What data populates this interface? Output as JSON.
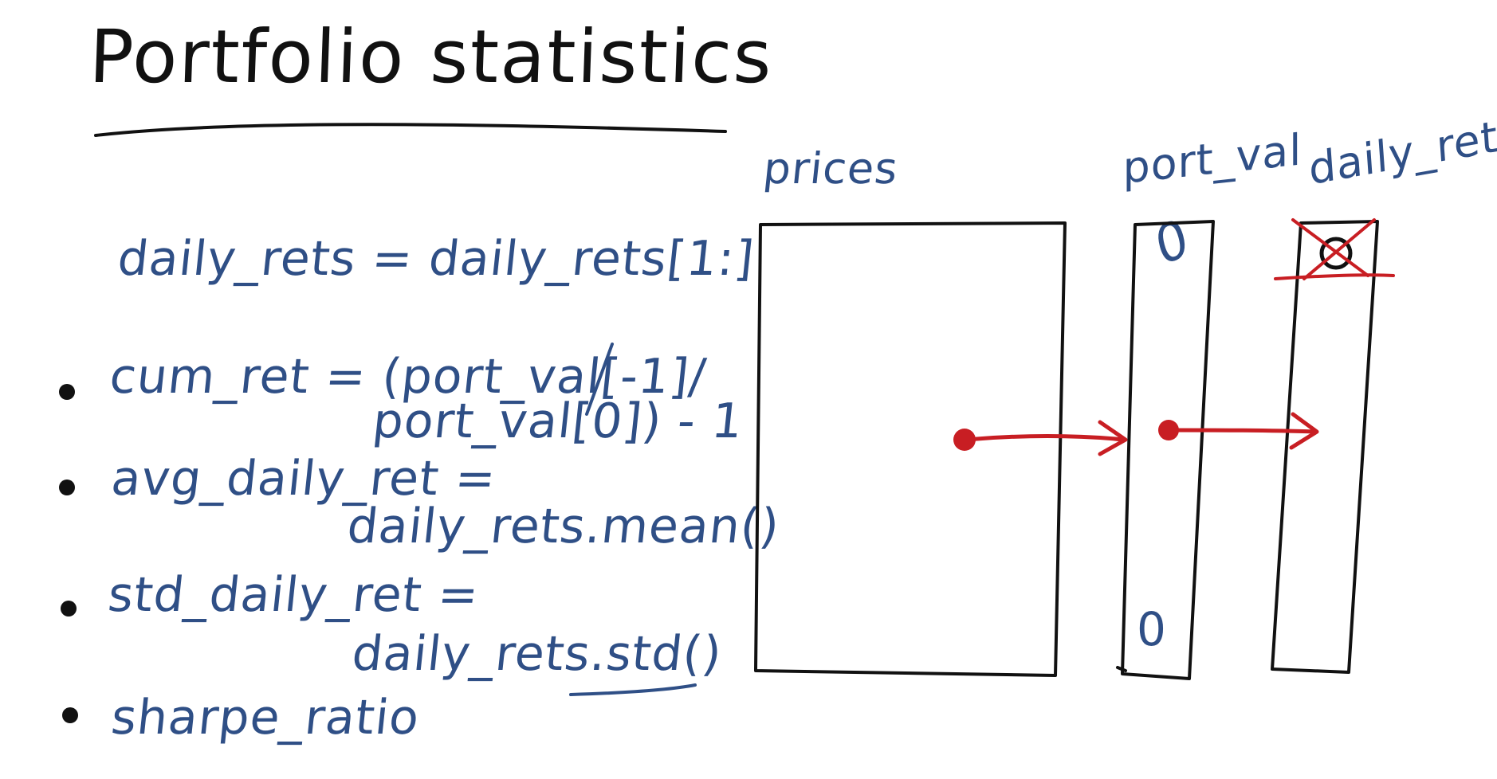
{
  "title": "Portfolio statistics",
  "lines": {
    "daily_rets_slice": "daily_rets = daily_rets[1:]",
    "cum_ret_1": "cum_ret = (port_val[-1]/",
    "cum_ret_2": "port_val[0]) - 1",
    "avg_daily_ret_1": "avg_daily_ret =",
    "avg_daily_ret_2": "daily_rets.mean()",
    "std_daily_ret_1": "std_daily_ret =",
    "std_daily_ret_2": "daily_rets.std()",
    "sharpe_ratio": "sharpe_ratio"
  },
  "diagram": {
    "prices_label": "prices",
    "port_val_label": "port_val",
    "daily_rets_label": "daily_rets",
    "port_val_top": "0",
    "port_val_bottom": "0"
  },
  "colors": {
    "ink_black": "#111111",
    "ink_blue": "#2f4f86",
    "ink_red": "#c81e23"
  }
}
